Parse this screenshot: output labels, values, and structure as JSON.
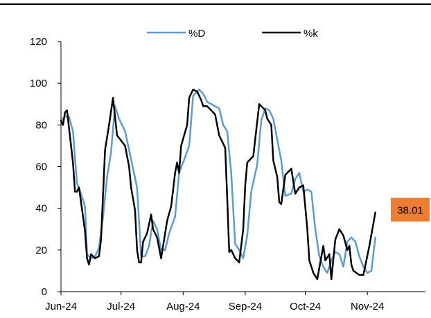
{
  "chart_data": {
    "type": "line",
    "title": "",
    "xlabel": "",
    "ylabel": "",
    "ylim": [
      0,
      120
    ],
    "yticks": [
      0,
      20,
      40,
      60,
      80,
      100,
      120
    ],
    "xlim": [
      "2024-06-01",
      "2024-11-30"
    ],
    "xticks": [
      {
        "date": "2024-06-01",
        "label": "Jun-24"
      },
      {
        "date": "2024-07-01",
        "label": "Jul-24"
      },
      {
        "date": "2024-08-01",
        "label": "Aug-24"
      },
      {
        "date": "2024-09-01",
        "label": "Sep-24"
      },
      {
        "date": "2024-10-01",
        "label": "Oct-24"
      },
      {
        "date": "2024-11-01",
        "label": "Nov-24"
      }
    ],
    "legend_position": "top-center",
    "grid": false,
    "series": [
      {
        "name": "%D",
        "color": "#5B9BD5",
        "points": [
          [
            "2024-06-01",
            82
          ],
          [
            "2024-06-03",
            84
          ],
          [
            "2024-06-05",
            84
          ],
          [
            "2024-06-07",
            77
          ],
          [
            "2024-06-09",
            52
          ],
          [
            "2024-06-11",
            47
          ],
          [
            "2024-06-13",
            41
          ],
          [
            "2024-06-14",
            18
          ],
          [
            "2024-06-16",
            16
          ],
          [
            "2024-06-18",
            17
          ],
          [
            "2024-06-20",
            21
          ],
          [
            "2024-06-22",
            36
          ],
          [
            "2024-06-24",
            55
          ],
          [
            "2024-06-26",
            67
          ],
          [
            "2024-06-28",
            89
          ],
          [
            "2024-06-30",
            83
          ],
          [
            "2024-07-03",
            77
          ],
          [
            "2024-07-05",
            68
          ],
          [
            "2024-07-07",
            59
          ],
          [
            "2024-07-09",
            50
          ],
          [
            "2024-07-11",
            17
          ],
          [
            "2024-07-13",
            17
          ],
          [
            "2024-07-15",
            22
          ],
          [
            "2024-07-17",
            34
          ],
          [
            "2024-07-19",
            30
          ],
          [
            "2024-07-21",
            20
          ],
          [
            "2024-07-23",
            20
          ],
          [
            "2024-07-25",
            28
          ],
          [
            "2024-07-28",
            36
          ],
          [
            "2024-07-30",
            57
          ],
          [
            "2024-08-01",
            62
          ],
          [
            "2024-08-04",
            70
          ],
          [
            "2024-08-06",
            94
          ],
          [
            "2024-08-09",
            97
          ],
          [
            "2024-08-11",
            95
          ],
          [
            "2024-08-13",
            91
          ],
          [
            "2024-08-15",
            90
          ],
          [
            "2024-08-17",
            89
          ],
          [
            "2024-08-19",
            88
          ],
          [
            "2024-08-21",
            80
          ],
          [
            "2024-08-23",
            77
          ],
          [
            "2024-08-25",
            57
          ],
          [
            "2024-08-27",
            23
          ],
          [
            "2024-08-29",
            20
          ],
          [
            "2024-08-31",
            16
          ],
          [
            "2024-09-02",
            27
          ],
          [
            "2024-09-04",
            48
          ],
          [
            "2024-09-07",
            61
          ],
          [
            "2024-09-09",
            82
          ],
          [
            "2024-09-11",
            88
          ],
          [
            "2024-09-13",
            87
          ],
          [
            "2024-09-15",
            83
          ],
          [
            "2024-09-17",
            73
          ],
          [
            "2024-09-19",
            63
          ],
          [
            "2024-09-21",
            46
          ],
          [
            "2024-09-24",
            47
          ],
          [
            "2024-09-26",
            54
          ],
          [
            "2024-09-28",
            57
          ],
          [
            "2024-09-30",
            48
          ],
          [
            "2024-10-02",
            49
          ],
          [
            "2024-10-04",
            48
          ],
          [
            "2024-10-06",
            30
          ],
          [
            "2024-10-08",
            17
          ],
          [
            "2024-10-10",
            12
          ],
          [
            "2024-10-12",
            9
          ],
          [
            "2024-10-14",
            15
          ],
          [
            "2024-10-16",
            19
          ],
          [
            "2024-10-18",
            18
          ],
          [
            "2024-10-20",
            12
          ],
          [
            "2024-10-22",
            24
          ],
          [
            "2024-10-24",
            26
          ],
          [
            "2024-10-26",
            24
          ],
          [
            "2024-10-28",
            17
          ],
          [
            "2024-10-30",
            12
          ],
          [
            "2024-11-01",
            9
          ],
          [
            "2024-11-03",
            10
          ],
          [
            "2024-11-05",
            26
          ]
        ]
      },
      {
        "name": "%k",
        "color": "#000000",
        "points": [
          [
            "2024-06-01",
            82
          ],
          [
            "2024-06-02",
            80
          ],
          [
            "2024-06-03",
            86
          ],
          [
            "2024-06-04",
            87
          ],
          [
            "2024-06-07",
            62
          ],
          [
            "2024-06-08",
            48
          ],
          [
            "2024-06-09",
            48
          ],
          [
            "2024-06-10",
            50
          ],
          [
            "2024-06-11",
            43
          ],
          [
            "2024-06-13",
            29
          ],
          [
            "2024-06-14",
            16
          ],
          [
            "2024-06-15",
            13
          ],
          [
            "2024-06-16",
            18
          ],
          [
            "2024-06-18",
            16
          ],
          [
            "2024-06-20",
            17
          ],
          [
            "2024-06-21",
            25
          ],
          [
            "2024-06-23",
            68
          ],
          [
            "2024-06-25",
            80
          ],
          [
            "2024-06-27",
            93
          ],
          [
            "2024-06-29",
            75
          ],
          [
            "2024-07-03",
            70
          ],
          [
            "2024-07-05",
            60
          ],
          [
            "2024-07-06",
            50
          ],
          [
            "2024-07-08",
            39
          ],
          [
            "2024-07-09",
            20
          ],
          [
            "2024-07-10",
            14
          ],
          [
            "2024-07-11",
            14
          ],
          [
            "2024-07-12",
            24
          ],
          [
            "2024-07-14",
            28
          ],
          [
            "2024-07-16",
            37
          ],
          [
            "2024-07-17",
            30
          ],
          [
            "2024-07-19",
            26
          ],
          [
            "2024-07-21",
            16
          ],
          [
            "2024-07-22",
            22
          ],
          [
            "2024-07-24",
            34
          ],
          [
            "2024-07-26",
            41
          ],
          [
            "2024-07-28",
            57
          ],
          [
            "2024-07-29",
            62
          ],
          [
            "2024-07-30",
            57
          ],
          [
            "2024-07-31",
            70
          ],
          [
            "2024-08-03",
            80
          ],
          [
            "2024-08-04",
            93
          ],
          [
            "2024-08-06",
            97
          ],
          [
            "2024-08-08",
            96
          ],
          [
            "2024-08-10",
            92
          ],
          [
            "2024-08-11",
            89
          ],
          [
            "2024-08-13",
            89
          ],
          [
            "2024-08-15",
            87
          ],
          [
            "2024-08-17",
            85
          ],
          [
            "2024-08-19",
            75
          ],
          [
            "2024-08-22",
            69
          ],
          [
            "2024-08-23",
            45
          ],
          [
            "2024-08-24",
            19
          ],
          [
            "2024-08-25",
            20
          ],
          [
            "2024-08-27",
            16
          ],
          [
            "2024-08-29",
            14
          ],
          [
            "2024-08-31",
            30
          ],
          [
            "2024-09-01",
            51
          ],
          [
            "2024-09-02",
            62
          ],
          [
            "2024-09-05",
            65
          ],
          [
            "2024-09-08",
            90
          ],
          [
            "2024-09-09",
            89
          ],
          [
            "2024-09-11",
            87
          ],
          [
            "2024-09-12",
            83
          ],
          [
            "2024-09-14",
            80
          ],
          [
            "2024-09-15",
            63
          ],
          [
            "2024-09-17",
            55
          ],
          [
            "2024-09-18",
            43
          ],
          [
            "2024-09-19",
            42
          ],
          [
            "2024-09-21",
            56
          ],
          [
            "2024-09-24",
            59
          ],
          [
            "2024-09-26",
            47
          ],
          [
            "2024-09-28",
            50
          ],
          [
            "2024-09-30",
            51
          ],
          [
            "2024-10-02",
            30
          ],
          [
            "2024-10-03",
            15
          ],
          [
            "2024-10-05",
            9
          ],
          [
            "2024-10-07",
            6
          ],
          [
            "2024-10-10",
            22
          ],
          [
            "2024-10-11",
            15
          ],
          [
            "2024-10-13",
            18
          ],
          [
            "2024-10-14",
            6
          ],
          [
            "2024-10-16",
            25
          ],
          [
            "2024-10-18",
            30
          ],
          [
            "2024-10-20",
            27
          ],
          [
            "2024-10-22",
            20
          ],
          [
            "2024-10-23",
            22
          ],
          [
            "2024-10-24",
            13
          ],
          [
            "2024-10-25",
            10
          ],
          [
            "2024-10-28",
            8
          ],
          [
            "2024-10-30",
            8
          ],
          [
            "2024-11-02",
            22
          ],
          [
            "2024-11-05",
            38
          ]
        ]
      }
    ],
    "annotation": {
      "label": "38.01",
      "date": "2024-11-05",
      "value": 38.01,
      "color": "#ED7D31"
    }
  }
}
